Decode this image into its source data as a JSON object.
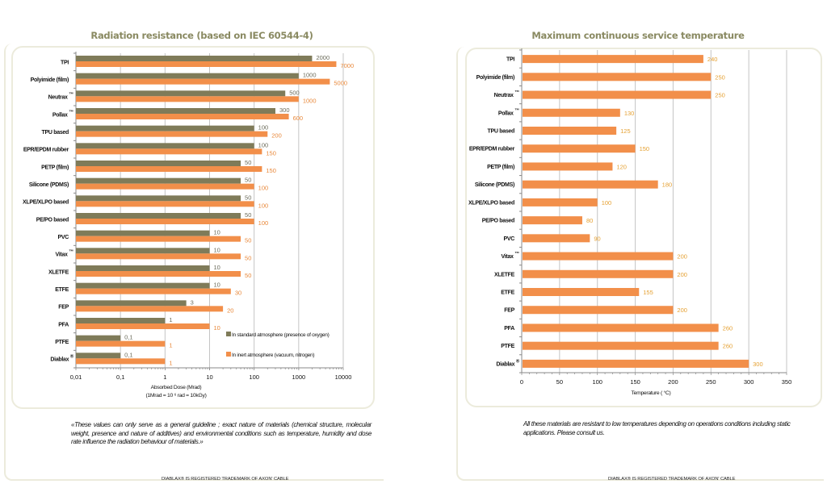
{
  "colors": {
    "standard": "#7f7b59",
    "inert": "#f28f4a",
    "value_standard": "#6b6b5a",
    "value_inert": "#e8883a",
    "value_temp": "#e5a133",
    "title": "#8a8a62",
    "grid": "#b8b8b8"
  },
  "left_page": {
    "note": "«These values can only serve as a general guideline ; exact nature of materials (chemical structure, molecular weight, presence and nature of additives) and environmental conditions such as temperature, humidity and dose rate influence the radiation behaviour of materials.»",
    "trademark": "DIABLAX® IS REGISTERED TRADEMARK OF AXON' CABLE"
  },
  "right_page": {
    "note": "All these materials are resistant to low temperatures depending on operations conditions including static applications. Please consult us.",
    "trademark": "DIABLAX® IS REGISTERED TRADEMARK OF AXON' CABLE"
  },
  "chart_data": [
    {
      "type": "bar",
      "orientation": "horizontal",
      "title": "Radiation resistance (based on IEC 60544-4)",
      "xlabel": "Absorbed Dose (Mrad)",
      "xlabel_note": "(1Mrad = 10 ⁶ rad = 10kGy)",
      "xscale": "log",
      "xlim": [
        0.01,
        10000
      ],
      "xticks": [
        "0,01",
        "0,1",
        "1",
        "10",
        "100",
        "1000",
        "10000"
      ],
      "xtick_values": [
        0.01,
        0.1,
        1,
        10,
        100,
        1000,
        10000
      ],
      "grid": true,
      "legend_position": "bottom-right",
      "categories": [
        "TPI",
        "Polyimide (film)",
        "Neutrax ™",
        "Pollax ™",
        "TPU based",
        "EPR/EPDM rubber",
        "PETP (film)",
        "Silicone (PDMS)",
        "XLPE/XLPO based",
        "PE/PO based",
        "PVC",
        "Vitax ™",
        "XLETFE",
        "ETFE",
        "FEP",
        "PFA",
        "PTFE",
        "Diablax ®"
      ],
      "series": [
        {
          "name": "In standard atmosphere (presence of oxygen)",
          "color": "#7f7b59",
          "values": [
            2000,
            1000,
            500,
            300,
            100,
            100,
            50,
            50,
            50,
            50,
            10,
            10,
            10,
            10,
            3,
            1,
            0.1,
            0.1
          ],
          "labels": [
            "2000",
            "1000",
            "500",
            "300",
            "100",
            "100",
            "50",
            "50",
            "50",
            "50",
            "10",
            "10",
            "10",
            "10",
            "3",
            "1",
            "0,1",
            "0,1"
          ]
        },
        {
          "name": "In inert atmosphere (vacuum, nitrogen)",
          "color": "#f28f4a",
          "values": [
            7000,
            5000,
            1000,
            600,
            200,
            150,
            150,
            100,
            100,
            100,
            50,
            50,
            50,
            30,
            20,
            10,
            1,
            1
          ],
          "labels": [
            "7000",
            "5000",
            "1000",
            "600",
            "200",
            "150",
            "150",
            "100",
            "100",
            "100",
            "50",
            "50",
            "50",
            "30",
            "20",
            "10",
            "1",
            "1"
          ]
        }
      ]
    },
    {
      "type": "bar",
      "orientation": "horizontal",
      "title": "Maximum continuous service temperature",
      "xlabel": "Temperature ( °C)",
      "xscale": "linear",
      "xlim": [
        0,
        350
      ],
      "xticks": [
        "0",
        "50",
        "100",
        "150",
        "200",
        "250",
        "300",
        "350"
      ],
      "xtick_values": [
        0,
        50,
        100,
        150,
        200,
        250,
        300,
        350
      ],
      "grid": true,
      "categories": [
        "TPI",
        "Polyimide (film)",
        "Neutrax ™",
        "Pollax ™",
        "TPU based",
        "EPR/EPDM rubber",
        "PETP (film)",
        "Silicone (PDMS)",
        "XLPE/XLPO based",
        "PE/PO based",
        "PVC",
        "Vitax ™",
        "XLETFE",
        "ETFE",
        "FEP",
        "PFA",
        "PTFE",
        "Diablax ®"
      ],
      "series": [
        {
          "name": "Temperature",
          "color": "#f28f4a",
          "values": [
            240,
            250,
            250,
            130,
            125,
            150,
            120,
            180,
            100,
            80,
            90,
            200,
            200,
            155,
            200,
            260,
            260,
            300
          ]
        }
      ]
    }
  ]
}
